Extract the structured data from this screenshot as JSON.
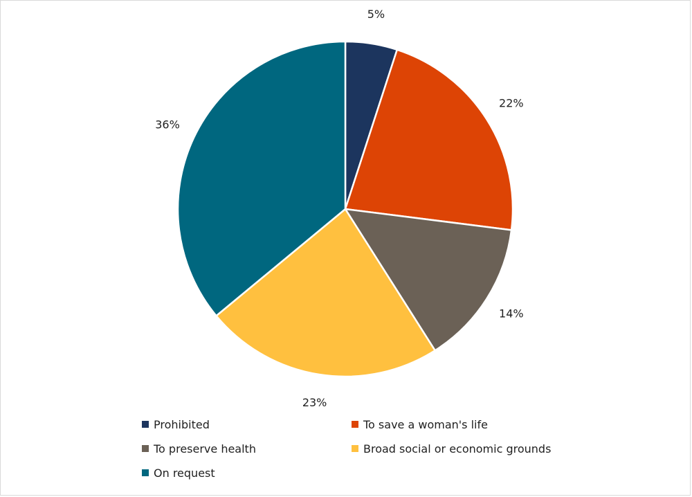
{
  "chart_data": {
    "type": "pie",
    "categories": [
      "Prohibited",
      "To save a woman's life",
      "To preserve health",
      "Broad social or economic grounds",
      "On request"
    ],
    "values": [
      5,
      22,
      14,
      23,
      36
    ],
    "data_labels": [
      "5%",
      "22%",
      "14%",
      "23%",
      "36%"
    ],
    "colors": [
      "#1c355e",
      "#dd4405",
      "#6b6156",
      "#ffc03f",
      "#00677f"
    ],
    "start_angle": "12 o'clock",
    "direction": "clockwise",
    "legend_position": "bottom",
    "legend": [
      {
        "label": "Prohibited",
        "color": "#1c355e"
      },
      {
        "label": "To save a woman's life",
        "color": "#dd4405"
      },
      {
        "label": "To preserve health",
        "color": "#6b6156"
      },
      {
        "label": "Broad social or economic grounds",
        "color": "#ffc03f"
      },
      {
        "label": "On request",
        "color": "#00677f"
      }
    ]
  }
}
